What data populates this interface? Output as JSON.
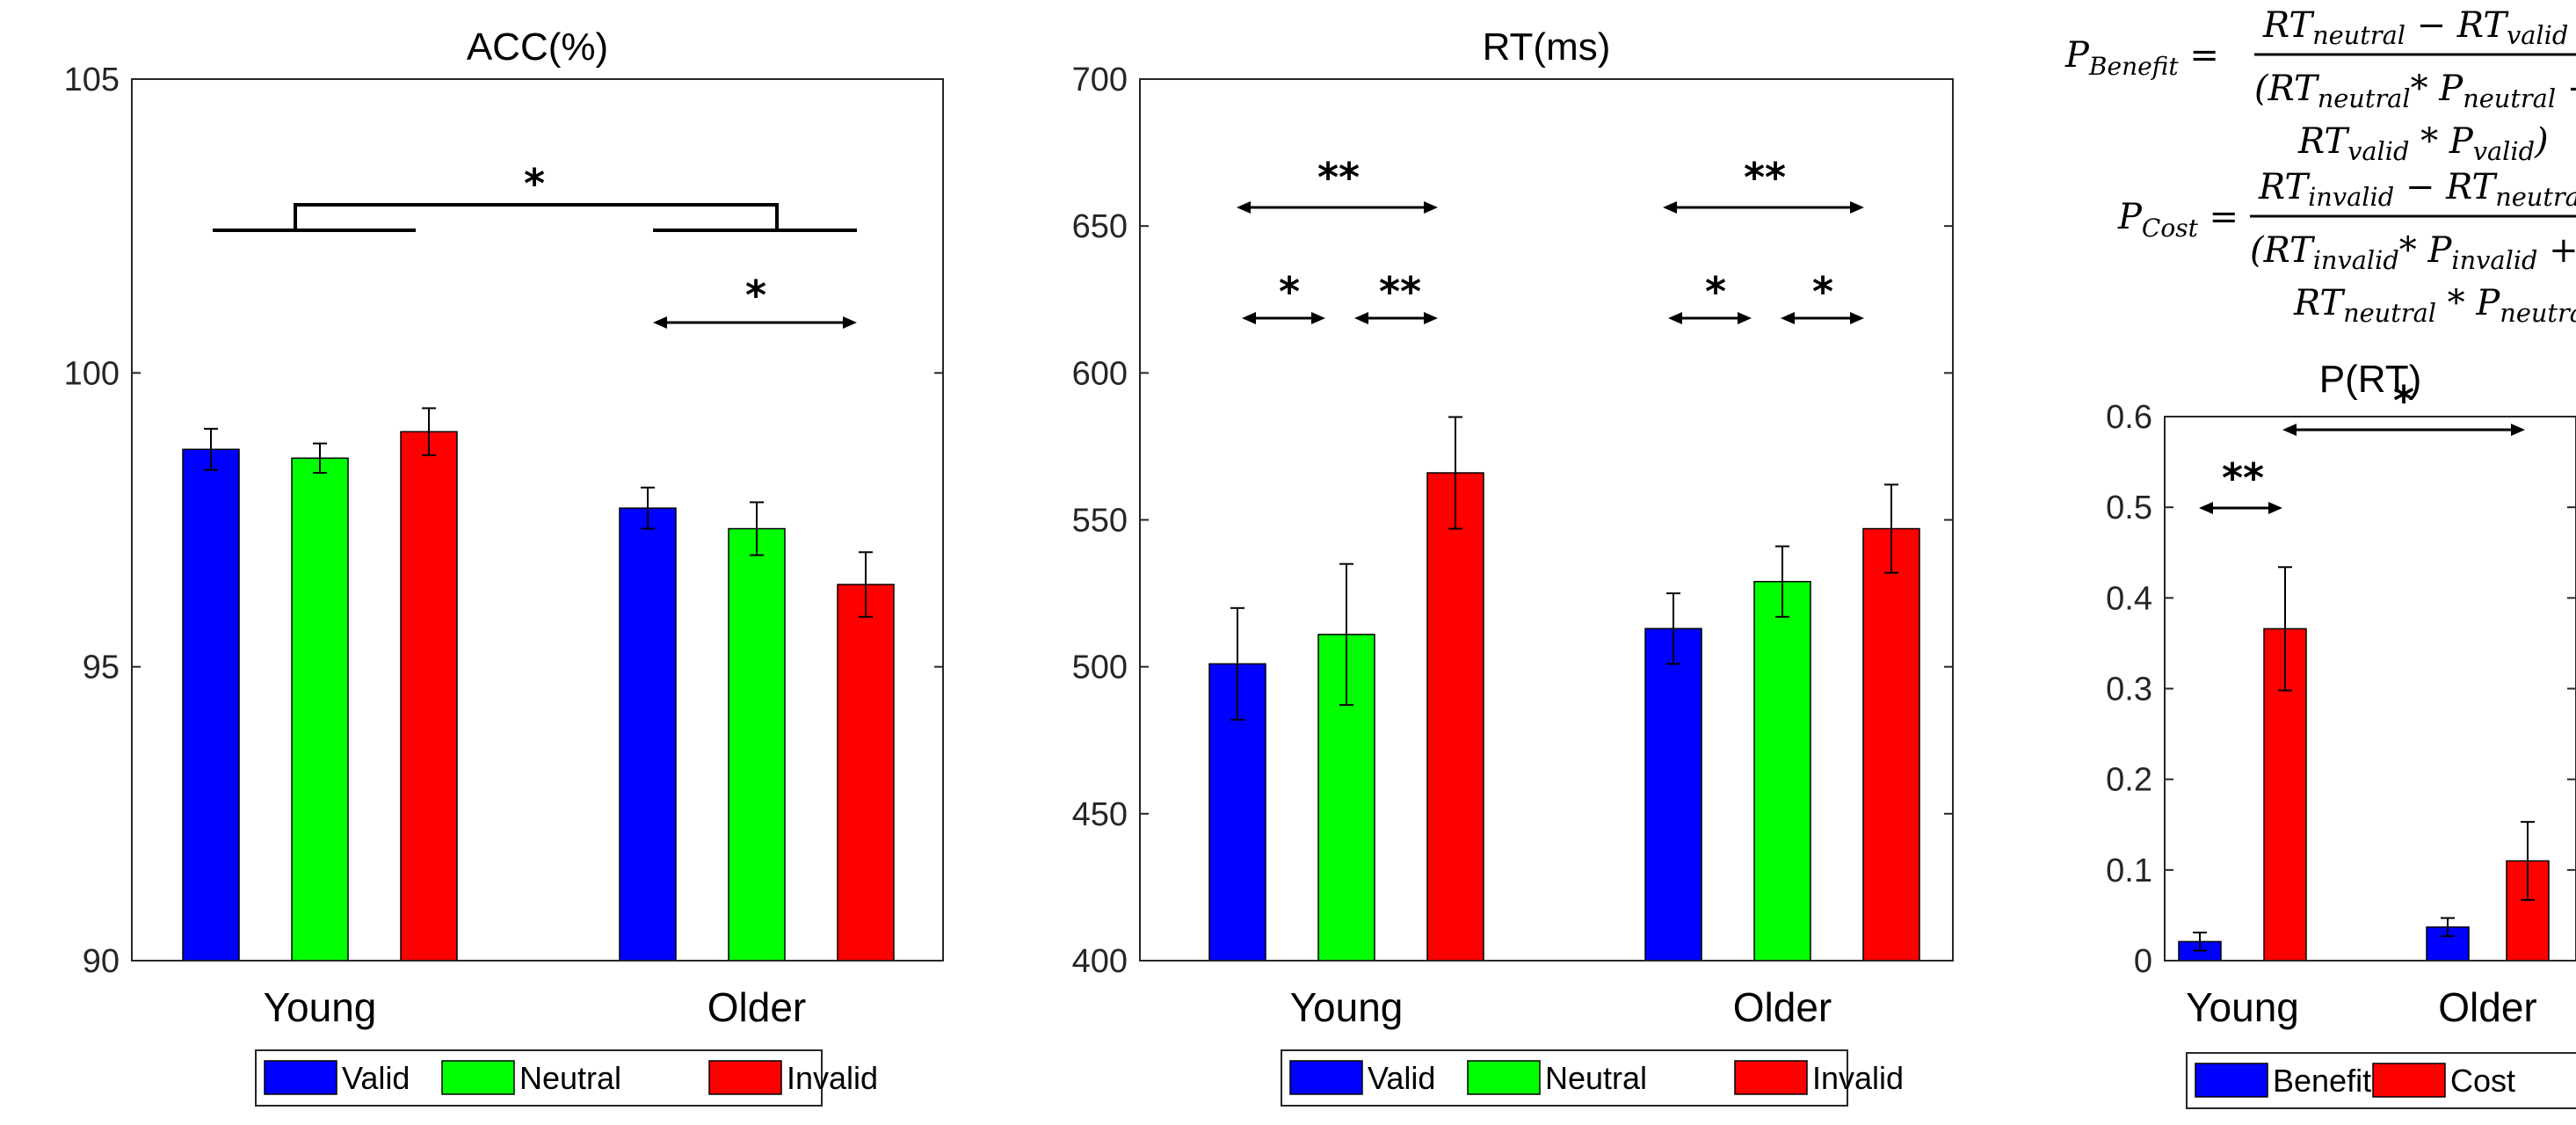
{
  "chart_data": [
    {
      "type": "bar",
      "title": "ACC(%)",
      "categories": [
        "Young",
        "Older"
      ],
      "ylim": [
        90,
        105
      ],
      "yticks": [
        "90",
        "95",
        "100",
        "105"
      ],
      "series": [
        {
          "name": "Valid",
          "color": "#0000ff",
          "values": [
            98.7,
            97.7
          ],
          "errors": [
            0.35,
            0.35
          ]
        },
        {
          "name": "Neutral",
          "color": "#00ff00",
          "values": [
            98.55,
            97.35
          ],
          "errors": [
            0.25,
            0.45
          ]
        },
        {
          "name": "Invalid",
          "color": "#ff0000",
          "values": [
            99.0,
            96.4
          ],
          "errors": [
            0.4,
            0.55
          ]
        }
      ],
      "legend": {
        "placement": "bottom",
        "labels": [
          "Valid",
          "Neutral",
          "Invalid"
        ]
      },
      "significance": [
        "*",
        "*"
      ]
    },
    {
      "type": "bar",
      "title": "RT(ms)",
      "categories": [
        "Young",
        "Older"
      ],
      "ylim": [
        400,
        700
      ],
      "yticks": [
        "400",
        "450",
        "500",
        "550",
        "600",
        "650",
        "700"
      ],
      "series": [
        {
          "name": "Valid",
          "color": "#0000ff",
          "values": [
            501,
            513
          ],
          "errors": [
            19,
            12
          ]
        },
        {
          "name": "Neutral",
          "color": "#00ff00",
          "values": [
            511,
            529
          ],
          "errors": [
            24,
            12
          ]
        },
        {
          "name": "Invalid",
          "color": "#ff0000",
          "values": [
            566,
            547
          ],
          "errors": [
            19,
            15
          ]
        }
      ],
      "legend": {
        "placement": "bottom",
        "labels": [
          "Valid",
          "Neutral",
          "Invalid"
        ]
      },
      "significance": [
        "**",
        "*",
        "**",
        "**",
        "*",
        "*"
      ]
    },
    {
      "type": "bar",
      "title": "P(RT)",
      "categories": [
        "Young",
        "Older"
      ],
      "ylim": [
        0,
        0.6
      ],
      "yticks": [
        "0",
        "0.1",
        "0.2",
        "0.3",
        "0.4",
        "0.5",
        "0.6"
      ],
      "series": [
        {
          "name": "Benefit",
          "color": "#0000ff",
          "values": [
            0.021,
            0.037
          ],
          "errors": [
            0.01,
            0.01
          ]
        },
        {
          "name": "Cost",
          "color": "#ff0000",
          "values": [
            0.366,
            0.11
          ],
          "errors": [
            0.068,
            0.043
          ]
        }
      ],
      "legend": {
        "placement": "bottom",
        "labels": [
          "Benefit",
          "Cost"
        ]
      },
      "significance": [
        "**",
        "*"
      ]
    }
  ],
  "formulas": {
    "benefit": {
      "lhs": "P",
      "lhs_sub": "Benefit",
      "num": [
        "RT",
        "neutral",
        " − RT",
        "valid"
      ],
      "den1": [
        "(RT",
        "neutral",
        "* P",
        "neutral",
        " +"
      ],
      "den2": [
        "RT",
        "valid",
        " * P",
        "valid",
        ")"
      ]
    },
    "cost": {
      "lhs": "P",
      "lhs_sub": "Cost",
      "num": [
        "RT",
        "invalid",
        " − RT",
        "neutral"
      ],
      "den1": [
        "(RT",
        "invalid",
        "* P",
        "invalid",
        " +"
      ],
      "den2": [
        "RT",
        "neutral",
        " * P",
        "neutral",
        ")"
      ]
    }
  }
}
